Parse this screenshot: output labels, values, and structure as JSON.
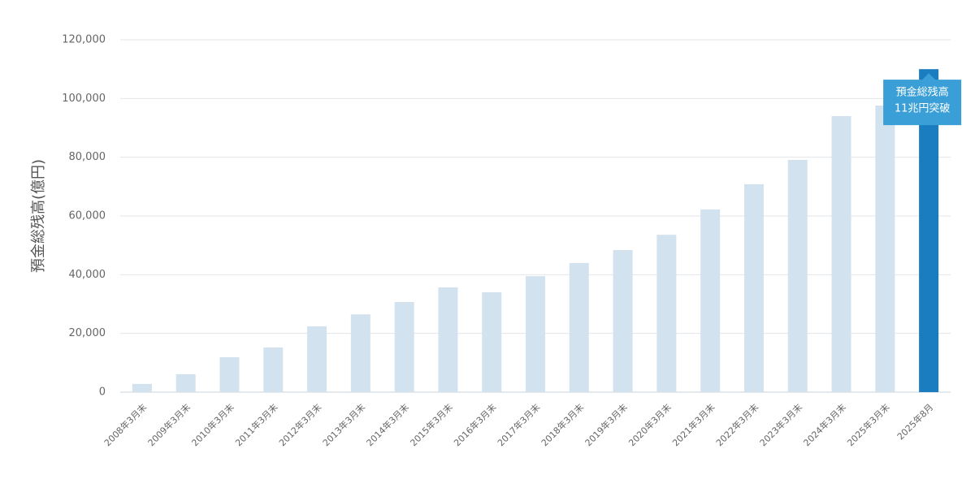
{
  "chart_data": {
    "type": "bar",
    "y_label": "預金総残高(億円)",
    "categories": [
      "2008年3月末",
      "2009年3月末",
      "2010年3月末",
      "2011年3月末",
      "2012年3月末",
      "2013年3月末",
      "2014年3月末",
      "2015年3月末",
      "2016年3月末",
      "2017年3月末",
      "2018年3月末",
      "2019年3月末",
      "2020年3月末",
      "2021年3月末",
      "2022年3月末",
      "2023年3月末",
      "2024年3月末",
      "2025年3月末",
      "2025年8月"
    ],
    "values": [
      2800,
      6100,
      11900,
      15200,
      22400,
      26500,
      30700,
      35700,
      34000,
      39500,
      44000,
      48400,
      53600,
      62200,
      70800,
      79100,
      94000,
      97600,
      110000
    ],
    "colors": [
      "#d3e2ef",
      "#d3e2ef",
      "#d3e2ef",
      "#d3e2ef",
      "#d3e2ef",
      "#d3e2ef",
      "#d3e2ef",
      "#d3e2ef",
      "#d3e2ef",
      "#d3e2ef",
      "#d3e2ef",
      "#d3e2ef",
      "#d3e2ef",
      "#d3e2ef",
      "#d3e2ef",
      "#d3e2ef",
      "#d3e2ef",
      "#d3e2ef",
      "#1a7dc0"
    ],
    "ylim": [
      0,
      120000
    ],
    "yticks": [
      0,
      {
        "value": 20000,
        "label": "20,000"
      },
      {
        "value": 40000,
        "label": "40,000"
      },
      {
        "value": 60000,
        "label": "60,000"
      },
      {
        "value": 80000,
        "label": "80,000"
      },
      {
        "value": 100000,
        "label": "100,000"
      },
      {
        "value": 120000,
        "label": "120,000"
      }
    ],
    "grid": true,
    "annotation": [
      "預金総残高",
      "11兆円突破"
    ]
  }
}
